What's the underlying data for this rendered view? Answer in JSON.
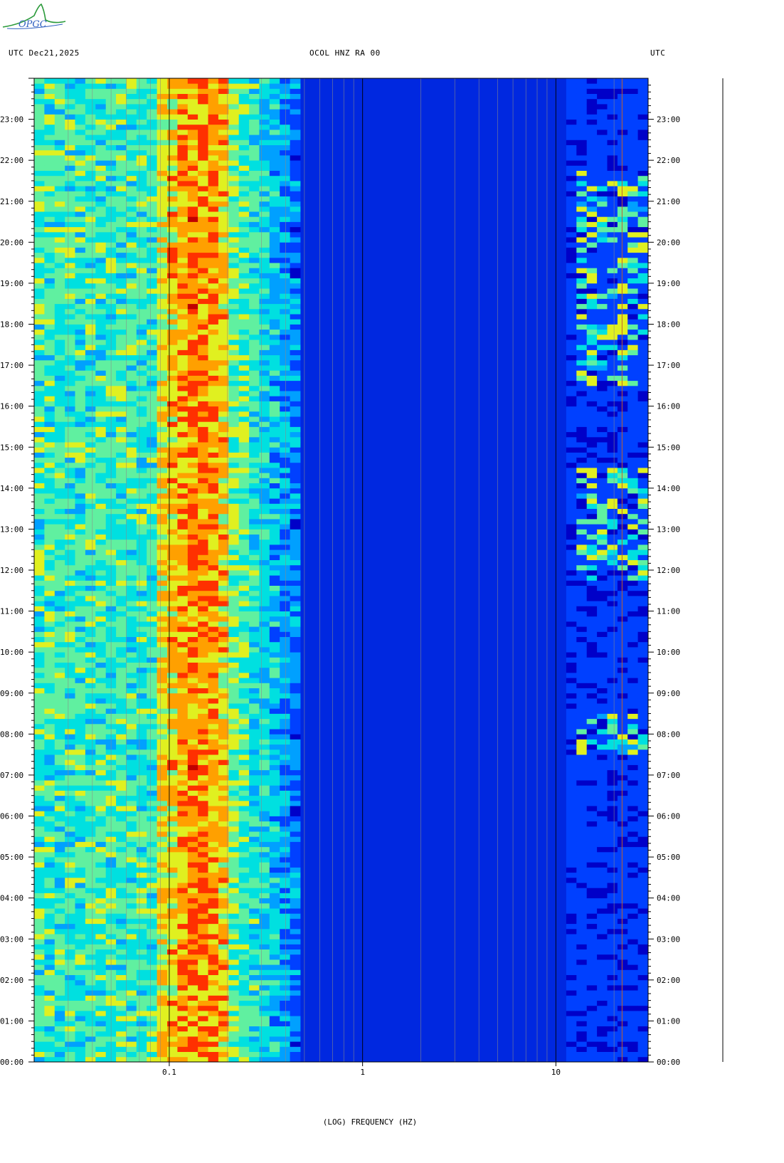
{
  "header": {
    "left": "UTC  Dec21,2025",
    "center": "OCOL HNZ RA 00",
    "right": "UTC",
    "logo_text": "OPGC"
  },
  "chart_data": {
    "type": "heatmap",
    "title": "OCOL HNZ RA 00",
    "date": "Dec21,2025",
    "xlabel": "(LOG) FREQUENCY (HZ)",
    "x_scale": "log",
    "xlim_hz": [
      0.02,
      30
    ],
    "x_tick_labels": [
      "0.1",
      "1",
      "10"
    ],
    "x_tick_values_hz": [
      0.1,
      1,
      10
    ],
    "y_axis_label": "UTC",
    "ylim_hours": [
      0,
      24
    ],
    "y_tick_labels": [
      "00:00",
      "01:00",
      "02:00",
      "03:00",
      "04:00",
      "05:00",
      "06:00",
      "07:00",
      "08:00",
      "09:00",
      "10:00",
      "11:00",
      "12:00",
      "13:00",
      "14:00",
      "15:00",
      "16:00",
      "17:00",
      "18:00",
      "19:00",
      "20:00",
      "21:00",
      "22:00",
      "23:00"
    ],
    "colormap": [
      "#0000c8",
      "#0040ff",
      "#00a0ff",
      "#00e0e0",
      "#60f0a0",
      "#e0f020",
      "#ffa000",
      "#ff3000",
      "#c00000"
    ],
    "spectral_features": [
      {
        "band_hz": [
          0.12,
          0.18
        ],
        "level": "high",
        "description": "microseism peak"
      },
      {
        "band_hz": [
          0.02,
          0.4
        ],
        "level": "moderate"
      },
      {
        "band_hz": [
          0.5,
          12
        ],
        "level": "low"
      },
      {
        "band_hz": [
          13,
          30
        ],
        "level": "bursts",
        "active_hours": [
          [
            7.5,
            8.5
          ],
          [
            11.8,
            14.5
          ],
          [
            16.5,
            21.8
          ]
        ]
      }
    ],
    "grid": "vertical lines at log-frequency decades",
    "right_hz_line_hz": 22
  },
  "colors": {
    "background": "#ffffff",
    "axis": "#000000"
  }
}
